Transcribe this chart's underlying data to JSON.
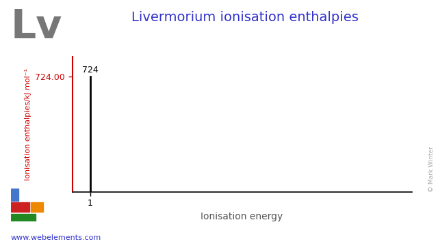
{
  "title": "Livermorium ionisation enthalpies",
  "element_symbol": "Lv",
  "ionisation_energies": [
    1
  ],
  "ionisation_values": [
    724
  ],
  "ylabel": "Ionisation enthalpies/kJ mol⁻¹",
  "xlabel": "Ionisation energy",
  "ymax": 850,
  "ymin": 0,
  "xmax": 10,
  "ytick_label": "724.00",
  "bar_label": "724",
  "title_color": "#3333cc",
  "symbol_color": "#777777",
  "ylabel_color": "#cc0000",
  "ytick_color": "#cc0000",
  "bar_color": "#000000",
  "axis_color": "#000000",
  "xlabel_color": "#555555",
  "url_text": "www.webelements.com",
  "url_color": "#3333cc",
  "copyright_text": "© Mark Winter",
  "copyright_color": "#aaaaaa",
  "background_color": "#ffffff",
  "periodic_table_colors": {
    "blue": "#4477cc",
    "red": "#cc2222",
    "orange": "#ee8800",
    "green": "#228822"
  }
}
